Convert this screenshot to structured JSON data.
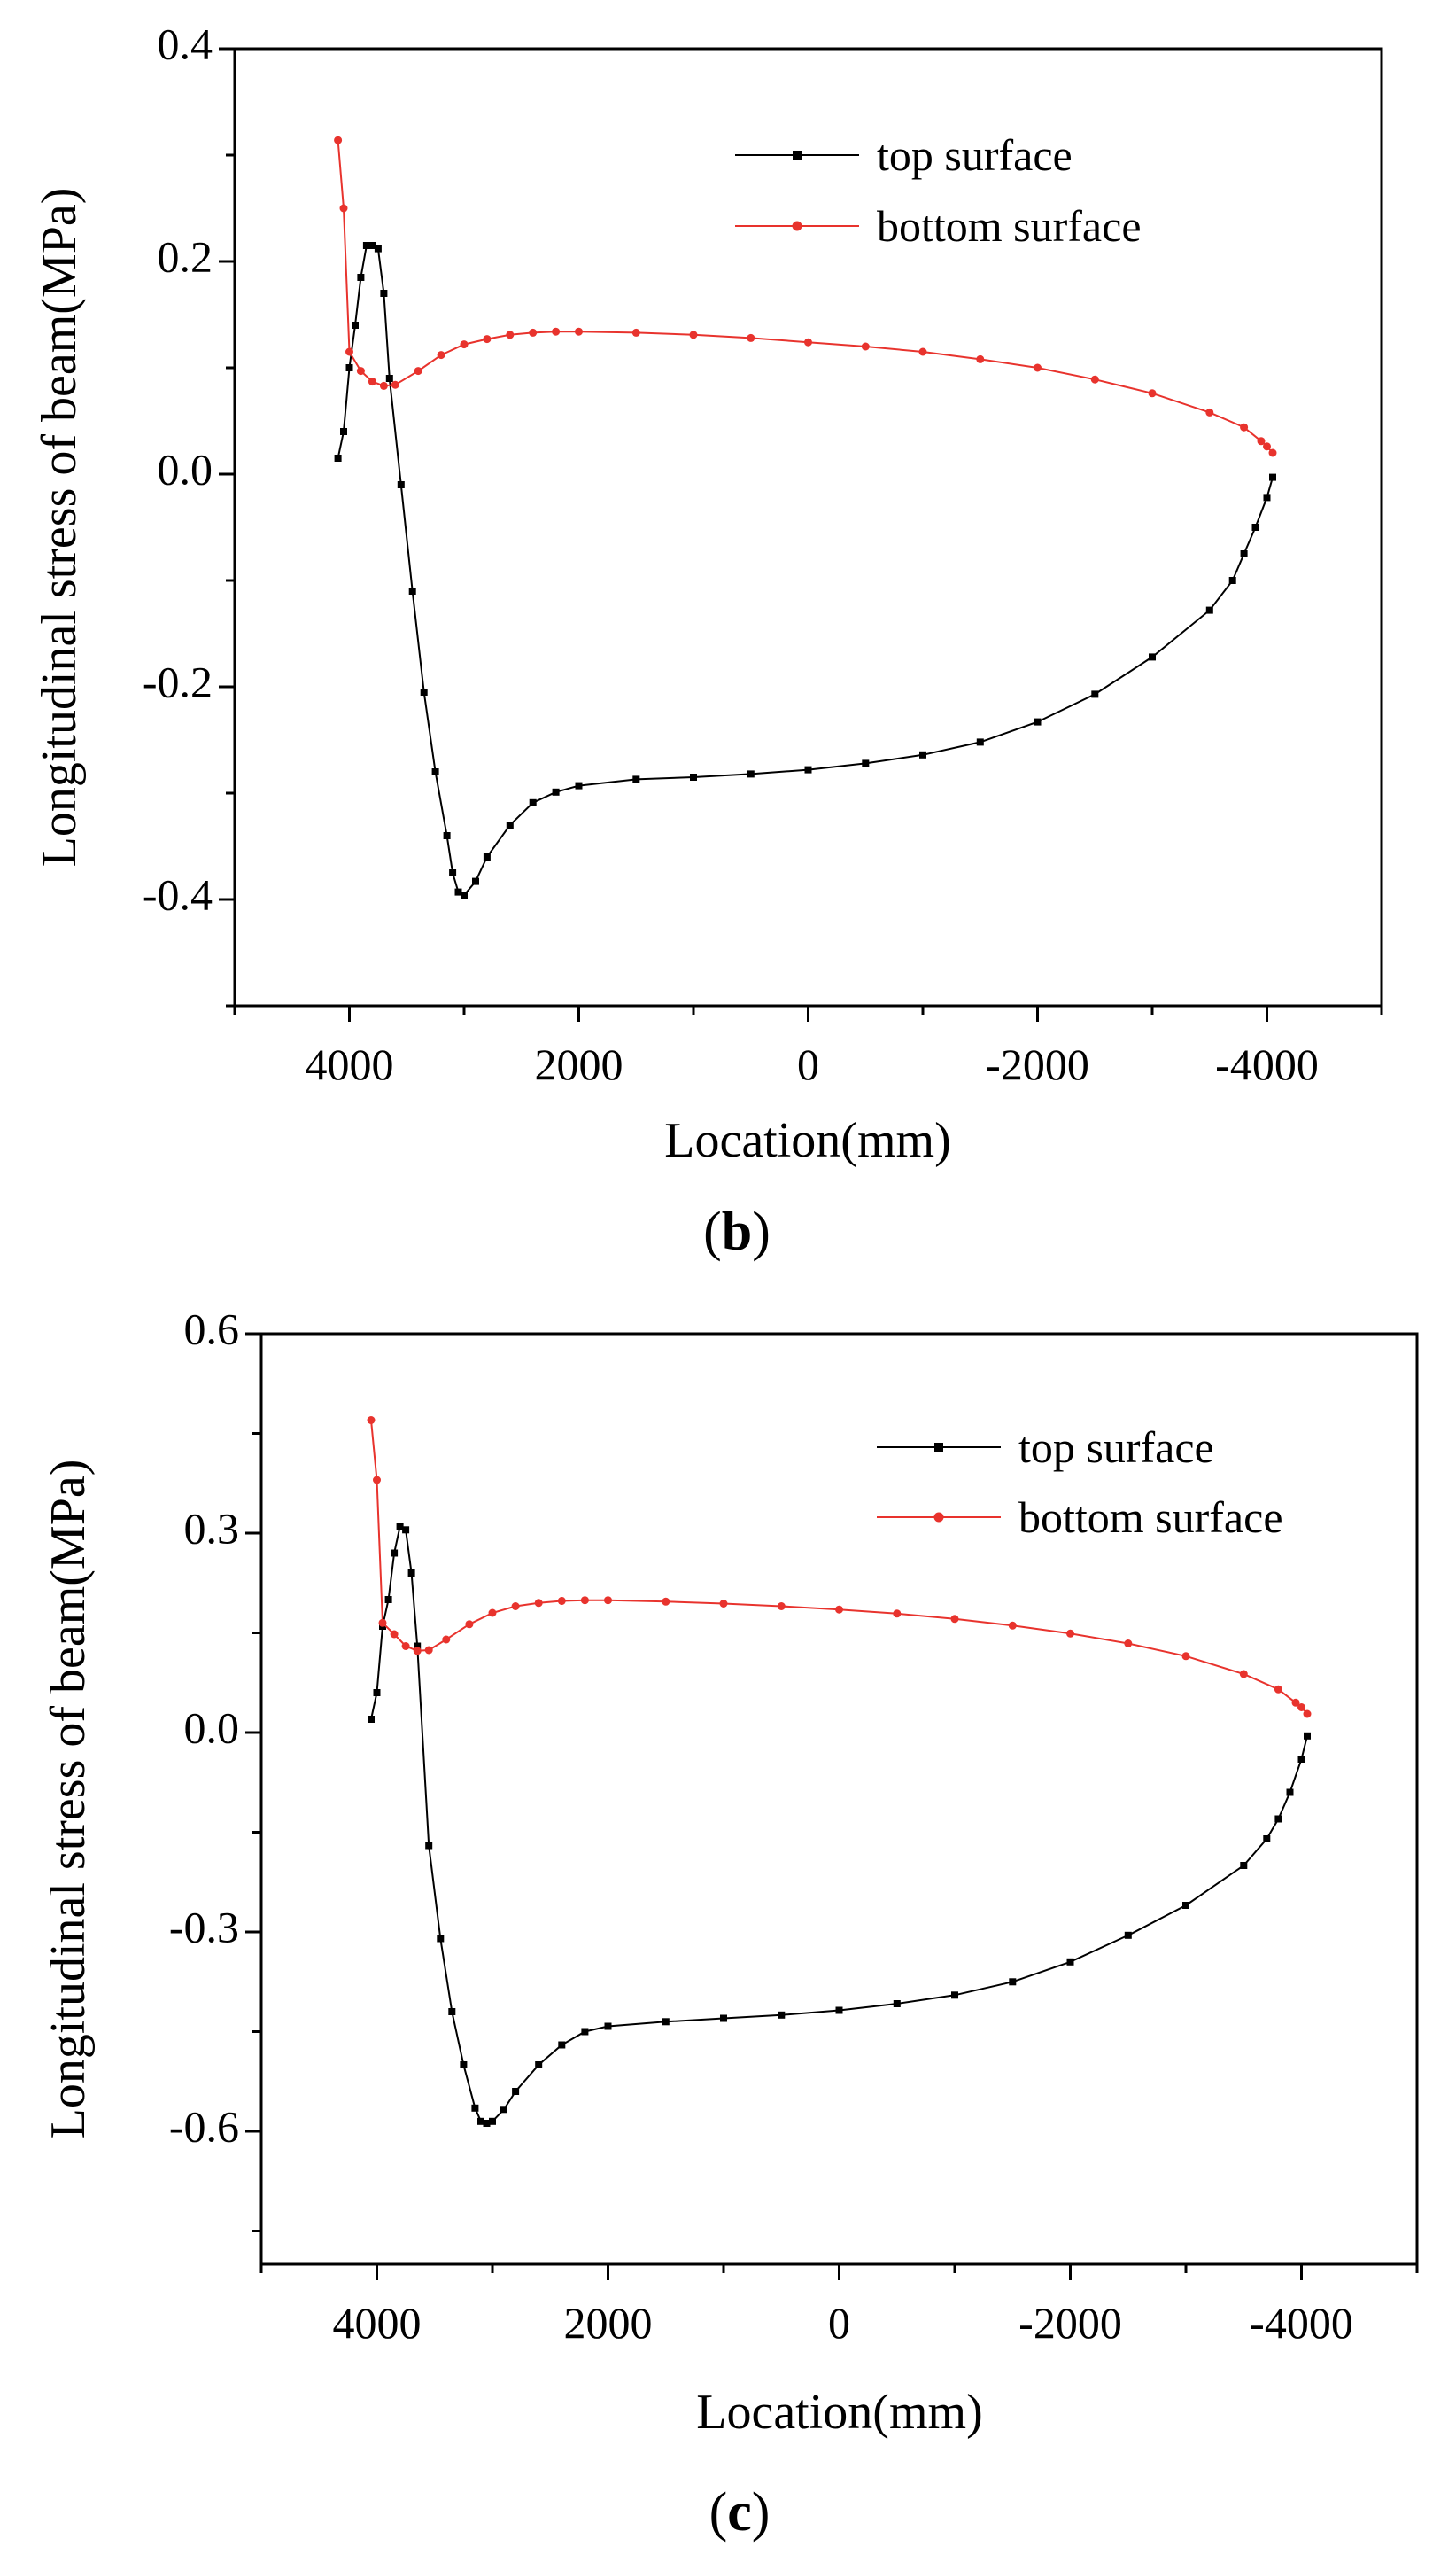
{
  "chart_data": [
    {
      "type": "line",
      "panel_label": "b",
      "xlabel": "Location(mm)",
      "ylabel": "Longitudinal stress of  beam(MPa)",
      "xlim": [
        5000,
        -5000
      ],
      "ylim": [
        -0.5,
        0.4
      ],
      "x_ticks": [
        4000,
        2000,
        0,
        -2000,
        -4000
      ],
      "x_tick_labels": [
        "4000",
        "2000",
        "0",
        "-2000",
        "-4000"
      ],
      "y_ticks": [
        0.4,
        0.2,
        0.0,
        -0.2,
        -0.4
      ],
      "y_tick_labels": [
        "0.4",
        "0.2",
        "0.0",
        "-0.2",
        "-0.4"
      ],
      "legend_position": "top-right",
      "series": [
        {
          "name": "top surface",
          "color": "#000000",
          "marker": "square",
          "points": [
            [
              4100,
              0.015
            ],
            [
              4050,
              0.04
            ],
            [
              4000,
              0.1
            ],
            [
              3950,
              0.14
            ],
            [
              3900,
              0.185
            ],
            [
              3850,
              0.215
            ],
            [
              3800,
              0.215
            ],
            [
              3750,
              0.212
            ],
            [
              3700,
              0.17
            ],
            [
              3650,
              0.09
            ],
            [
              3550,
              -0.01
            ],
            [
              3450,
              -0.11
            ],
            [
              3350,
              -0.205
            ],
            [
              3250,
              -0.28
            ],
            [
              3150,
              -0.34
            ],
            [
              3100,
              -0.375
            ],
            [
              3050,
              -0.393
            ],
            [
              3000,
              -0.396
            ],
            [
              2900,
              -0.383
            ],
            [
              2800,
              -0.36
            ],
            [
              2600,
              -0.33
            ],
            [
              2400,
              -0.309
            ],
            [
              2200,
              -0.299
            ],
            [
              2000,
              -0.293
            ],
            [
              1500,
              -0.287
            ],
            [
              1000,
              -0.285
            ],
            [
              500,
              -0.282
            ],
            [
              0,
              -0.278
            ],
            [
              -500,
              -0.272
            ],
            [
              -1000,
              -0.264
            ],
            [
              -1500,
              -0.252
            ],
            [
              -2000,
              -0.233
            ],
            [
              -2500,
              -0.207
            ],
            [
              -3000,
              -0.172
            ],
            [
              -3500,
              -0.128
            ],
            [
              -3700,
              -0.1
            ],
            [
              -3800,
              -0.075
            ],
            [
              -3900,
              -0.05
            ],
            [
              -4000,
              -0.022
            ],
            [
              -4050,
              -0.003
            ]
          ]
        },
        {
          "name": "bottom surface",
          "color": "#e8332d",
          "marker": "circle",
          "points": [
            [
              4100,
              0.314
            ],
            [
              4050,
              0.25
            ],
            [
              4000,
              0.115
            ],
            [
              3900,
              0.097
            ],
            [
              3800,
              0.087
            ],
            [
              3700,
              0.083
            ],
            [
              3600,
              0.084
            ],
            [
              3400,
              0.097
            ],
            [
              3200,
              0.112
            ],
            [
              3000,
              0.122
            ],
            [
              2800,
              0.127
            ],
            [
              2600,
              0.131
            ],
            [
              2400,
              0.133
            ],
            [
              2200,
              0.134
            ],
            [
              2000,
              0.134
            ],
            [
              1500,
              0.133
            ],
            [
              1000,
              0.131
            ],
            [
              500,
              0.128
            ],
            [
              0,
              0.124
            ],
            [
              -500,
              0.12
            ],
            [
              -1000,
              0.115
            ],
            [
              -1500,
              0.108
            ],
            [
              -2000,
              0.1
            ],
            [
              -2500,
              0.089
            ],
            [
              -3000,
              0.076
            ],
            [
              -3500,
              0.058
            ],
            [
              -3800,
              0.044
            ],
            [
              -3950,
              0.031
            ],
            [
              -4000,
              0.026
            ],
            [
              -4050,
              0.02
            ]
          ]
        }
      ]
    },
    {
      "type": "line",
      "panel_label": "c",
      "xlabel": "Location(mm)",
      "ylabel": "Longitudinal stress of  beam(MPa)",
      "xlim": [
        5000,
        -5000
      ],
      "ylim": [
        -0.8,
        0.6
      ],
      "x_ticks": [
        4000,
        2000,
        0,
        -2000,
        -4000
      ],
      "x_tick_labels": [
        "4000",
        "2000",
        "0",
        "-2000",
        "-4000"
      ],
      "y_ticks": [
        0.6,
        0.3,
        0.0,
        -0.3,
        -0.6
      ],
      "y_tick_labels": [
        "0.6",
        "0.3",
        "0.0",
        "-0.3",
        "-0.6"
      ],
      "legend_position": "top-right",
      "series": [
        {
          "name": "top surface",
          "color": "#000000",
          "marker": "square",
          "points": [
            [
              4050,
              0.02
            ],
            [
              4000,
              0.06
            ],
            [
              3950,
              0.16
            ],
            [
              3900,
              0.2
            ],
            [
              3850,
              0.27
            ],
            [
              3800,
              0.31
            ],
            [
              3750,
              0.305
            ],
            [
              3700,
              0.24
            ],
            [
              3650,
              0.13
            ],
            [
              3550,
              -0.17
            ],
            [
              3450,
              -0.31
            ],
            [
              3350,
              -0.42
            ],
            [
              3250,
              -0.5
            ],
            [
              3150,
              -0.565
            ],
            [
              3100,
              -0.585
            ],
            [
              3050,
              -0.588
            ],
            [
              3000,
              -0.585
            ],
            [
              2900,
              -0.567
            ],
            [
              2800,
              -0.54
            ],
            [
              2600,
              -0.5
            ],
            [
              2400,
              -0.47
            ],
            [
              2200,
              -0.45
            ],
            [
              2000,
              -0.442
            ],
            [
              1500,
              -0.435
            ],
            [
              1000,
              -0.43
            ],
            [
              500,
              -0.425
            ],
            [
              0,
              -0.418
            ],
            [
              -500,
              -0.408
            ],
            [
              -1000,
              -0.395
            ],
            [
              -1500,
              -0.375
            ],
            [
              -2000,
              -0.345
            ],
            [
              -2500,
              -0.305
            ],
            [
              -3000,
              -0.26
            ],
            [
              -3500,
              -0.2
            ],
            [
              -3700,
              -0.16
            ],
            [
              -3800,
              -0.13
            ],
            [
              -3900,
              -0.09
            ],
            [
              -4000,
              -0.04
            ],
            [
              -4050,
              -0.005
            ]
          ]
        },
        {
          "name": "bottom surface",
          "color": "#e8332d",
          "marker": "circle",
          "points": [
            [
              4050,
              0.47
            ],
            [
              4000,
              0.38
            ],
            [
              3950,
              0.165
            ],
            [
              3850,
              0.148
            ],
            [
              3750,
              0.13
            ],
            [
              3650,
              0.123
            ],
            [
              3550,
              0.124
            ],
            [
              3400,
              0.14
            ],
            [
              3200,
              0.163
            ],
            [
              3000,
              0.18
            ],
            [
              2800,
              0.19
            ],
            [
              2600,
              0.195
            ],
            [
              2400,
              0.198
            ],
            [
              2200,
              0.199
            ],
            [
              2000,
              0.199
            ],
            [
              1500,
              0.197
            ],
            [
              1000,
              0.194
            ],
            [
              500,
              0.19
            ],
            [
              0,
              0.185
            ],
            [
              -500,
              0.179
            ],
            [
              -1000,
              0.171
            ],
            [
              -1500,
              0.161
            ],
            [
              -2000,
              0.149
            ],
            [
              -2500,
              0.134
            ],
            [
              -3000,
              0.115
            ],
            [
              -3500,
              0.088
            ],
            [
              -3800,
              0.065
            ],
            [
              -3950,
              0.045
            ],
            [
              -4000,
              0.038
            ],
            [
              -4050,
              0.028
            ]
          ]
        }
      ]
    }
  ]
}
